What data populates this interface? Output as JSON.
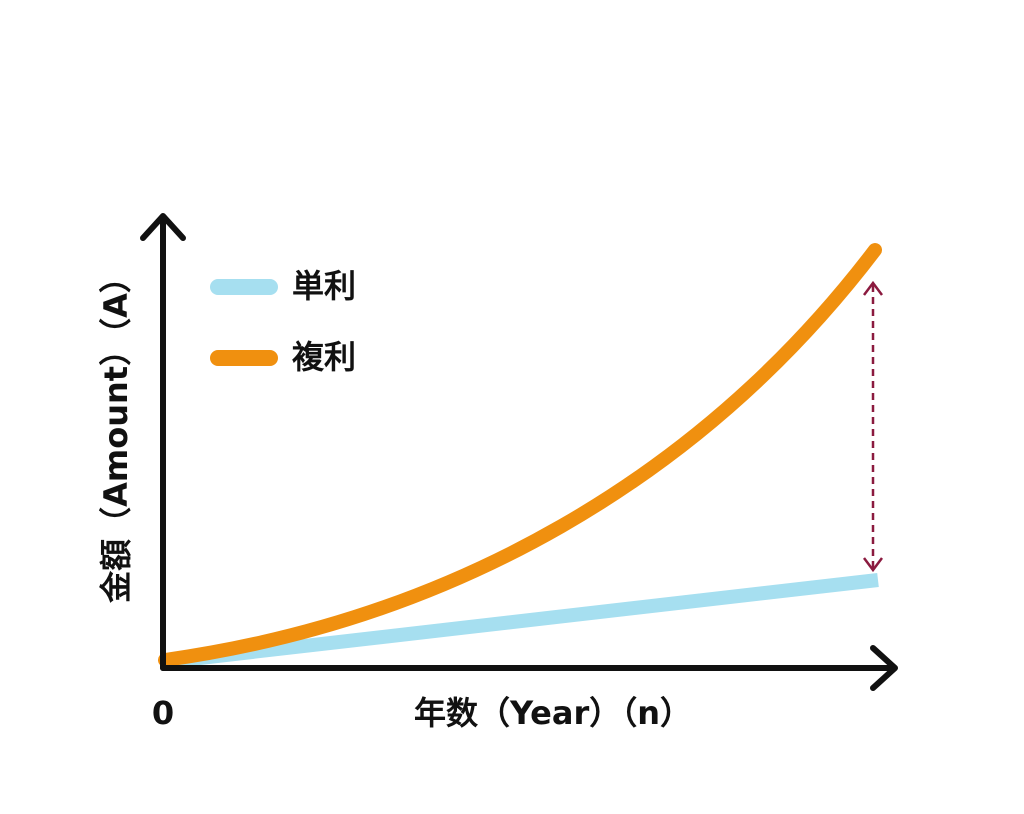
{
  "axes": {
    "y_label": "金額（Amount）（A）",
    "x_label": "年数（Year）（n）",
    "origin": "0"
  },
  "legend": {
    "simple": "単利",
    "compound": "複利"
  }
}
